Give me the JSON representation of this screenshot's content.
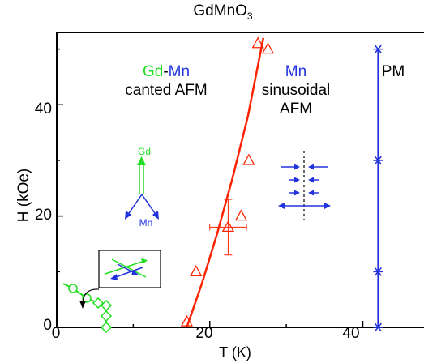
{
  "chart_data": {
    "type": "scatter",
    "title_main": "GdMnO",
    "title_sub": "3",
    "xlabel": "T (K)",
    "ylabel": "H (kOe)",
    "xlim": [
      0,
      48
    ],
    "ylim": [
      0,
      53
    ],
    "xticks": [
      "0",
      "20",
      "40"
    ],
    "yticks": [
      "0",
      "20",
      "40"
    ],
    "series": [
      {
        "marker": "triangle",
        "color": "#ff2200",
        "x": [
          17,
          18.2,
          22.4,
          24.1,
          25.1,
          26.3,
          27.6
        ],
        "y": [
          1,
          10,
          18,
          20,
          30,
          51,
          50
        ]
      },
      {
        "marker": "star",
        "color": "#2233dd",
        "x": [
          42,
          42,
          42,
          42
        ],
        "y": [
          0,
          10,
          30,
          50
        ]
      }
    ],
    "error_bar": {
      "x": 22.4,
      "y": 18,
      "xerr": 2.4,
      "yerr": 5
    },
    "fit_curve": {
      "color": "#ff2200",
      "x": [
        17,
        19,
        21,
        23,
        25,
        27
      ],
      "y": [
        0,
        8,
        17,
        27,
        38,
        52
      ]
    },
    "phase_line": {
      "color": "#2233dd",
      "x": 42,
      "y": [
        0,
        50
      ]
    },
    "annotations": {
      "gd_label": "Gd",
      "dash": "-",
      "mn_label": "Mn",
      "canted": "canted AFM",
      "mn_phase": "Mn",
      "sinusoidal": "sinusoidal",
      "afm": "AFM",
      "pm": "PM",
      "arrow_gd": "Gd",
      "arrow_mn": "Mn"
    },
    "colors": {
      "red": "#ff2200",
      "blue": "#2233dd",
      "green": "#22dd22"
    }
  }
}
